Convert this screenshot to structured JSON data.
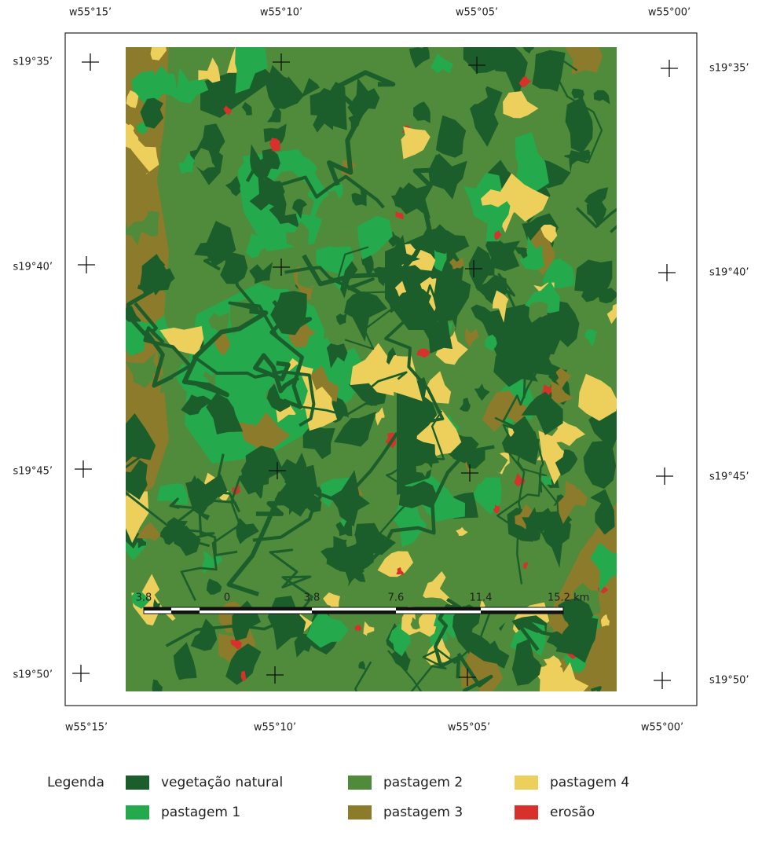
{
  "map": {
    "top_labels": [
      "w55°15’",
      "w55°10’",
      "w55°05’",
      "w55°00’"
    ],
    "bottom_labels": [
      "w55°15’",
      "w55°10’",
      "w55°05’",
      "w55°00’"
    ],
    "left_labels": [
      "s19°35’",
      "s19°40’",
      "s19°45’",
      "s19°50’"
    ],
    "right_labels": [
      "s19°35’",
      "s19°40’",
      "s19°45’",
      "s19°50’"
    ]
  },
  "scale_bar": {
    "labels": [
      "3.8",
      "0",
      "3.8",
      "7.6",
      "11.4",
      "15.2 km"
    ]
  },
  "legend": {
    "title": "Legenda",
    "items": [
      {
        "label": "vegetação natural",
        "color": "#1b5e2b"
      },
      {
        "label": "pastagem 2",
        "color": "#4f8b3b"
      },
      {
        "label": "pastagem 4",
        "color": "#edd05c"
      },
      {
        "label": "pastagem 1",
        "color": "#24a94c"
      },
      {
        "label": "pastagem 3",
        "color": "#8b7b2a"
      },
      {
        "label": "erosão",
        "color": "#d8302b"
      }
    ]
  }
}
